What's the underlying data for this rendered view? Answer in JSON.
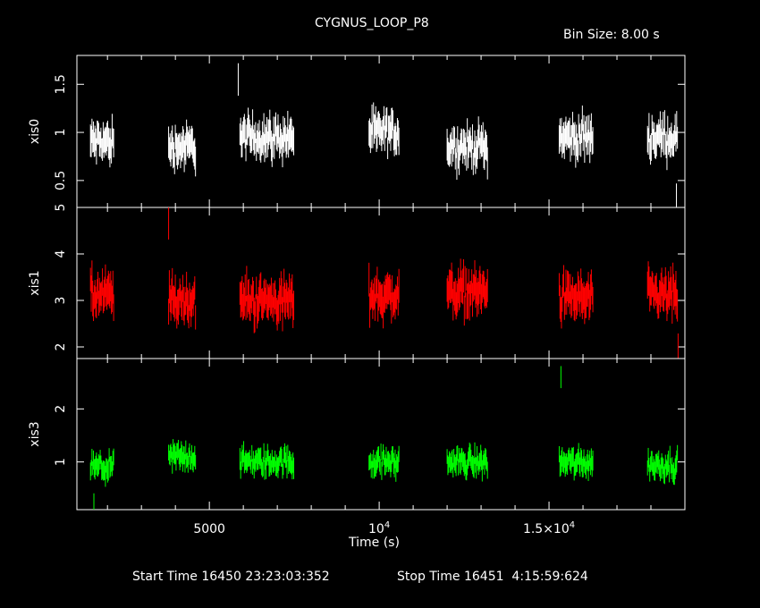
{
  "chart_data": {
    "type": "scatter",
    "title": "CYGNUS_LOOP_P8",
    "bin_size_label": "Bin Size: 8.00 s",
    "xlabel": "Time (s)",
    "xlim": [
      1100,
      19000
    ],
    "x_ticks": [
      {
        "value": 5000,
        "label": "5000"
      },
      {
        "value": 10000,
        "label": "10^4"
      },
      {
        "value": 15000,
        "label": "1.5×10^4"
      }
    ],
    "grid": false,
    "legend": "none",
    "start_time": "Start Time 16450 23:23:03:352",
    "stop_time": "Stop Time 16451  4:15:59:624",
    "segments": [
      [
        1500,
        2200
      ],
      [
        3800,
        4600
      ],
      [
        5900,
        7500
      ],
      [
        9700,
        10600
      ],
      [
        12000,
        13200
      ],
      [
        15300,
        16300
      ],
      [
        17900,
        18800
      ]
    ],
    "panels": [
      {
        "name": "xis0",
        "color": "#ffffff",
        "ylim": [
          0.22,
          1.8
        ],
        "yticks": [
          0.5,
          1,
          1.5
        ],
        "ytick_labels": [
          "0.5",
          "1",
          "1.5"
        ],
        "segment_means": [
          0.9,
          0.85,
          0.95,
          1.0,
          0.85,
          0.95,
          0.95
        ],
        "spread": 0.13,
        "outliers": [
          [
            5850,
            1.55
          ],
          [
            18750,
            0.3
          ]
        ]
      },
      {
        "name": "xis1",
        "color": "#ff0000",
        "ylim": [
          1.75,
          5.0
        ],
        "yticks": [
          2,
          3,
          4,
          5
        ],
        "ytick_labels": [
          "2",
          "3",
          "4",
          "5"
        ],
        "segment_means": [
          3.1,
          3.0,
          3.0,
          3.1,
          3.2,
          3.05,
          3.1
        ],
        "spread": 0.3,
        "outliers": [
          [
            3800,
            4.7
          ],
          [
            18800,
            1.9
          ]
        ]
      },
      {
        "name": "xis3",
        "color": "#00ff00",
        "ylim": [
          0.1,
          2.95
        ],
        "yticks": [
          1,
          2
        ],
        "ytick_labels": [
          "1",
          "2"
        ],
        "segment_means": [
          0.9,
          1.1,
          1.0,
          1.0,
          1.0,
          1.0,
          0.95
        ],
        "spread": 0.16,
        "outliers": [
          [
            15350,
            2.6
          ],
          [
            1600,
            0.2
          ]
        ]
      }
    ]
  }
}
